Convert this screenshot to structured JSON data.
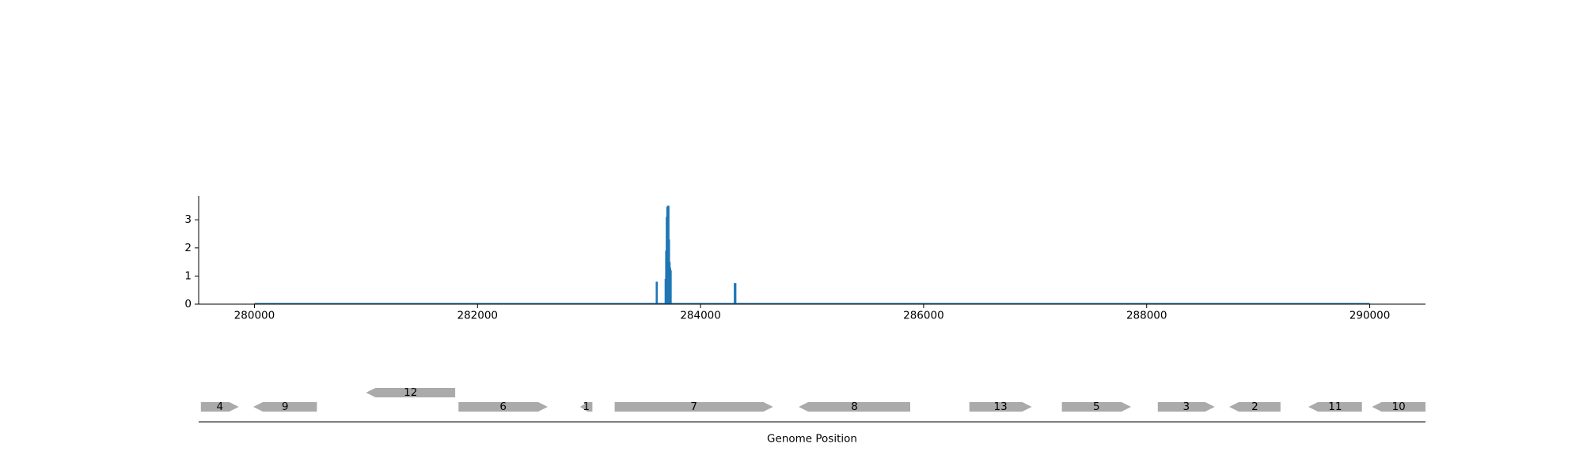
{
  "chart_data": [
    {
      "type": "bar",
      "title": "",
      "xlabel": "",
      "ylabel": "",
      "xlim": [
        279500,
        290500
      ],
      "ylim": [
        0,
        3.85
      ],
      "xticks": [
        280000,
        282000,
        284000,
        286000,
        288000,
        290000
      ],
      "xtick_labels": [
        "280000",
        "282000",
        "284000",
        "286000",
        "288000",
        "290000"
      ],
      "yticks": [
        0,
        1,
        2,
        3
      ],
      "ytick_labels": [
        "0",
        "1",
        "2",
        "3"
      ],
      "baseline_range": [
        280000,
        290000
      ],
      "color": "#1f77b4",
      "grid": false,
      "legend": false,
      "series": [
        {
          "x": [
            283605,
            283685,
            283690,
            283695,
            283700,
            283705,
            283710,
            283715,
            283720,
            283725,
            283730,
            284305,
            284310
          ],
          "values": [
            0.8,
            0.9,
            1.9,
            3.1,
            3.45,
            3.5,
            3.5,
            2.3,
            1.5,
            1.3,
            1.2,
            0.75,
            0.75
          ]
        }
      ]
    },
    {
      "type": "gene-track",
      "xlabel": "Genome Position",
      "xlim": [
        279500,
        290500
      ],
      "color": "#aaaaaa",
      "genes": [
        {
          "label": "4",
          "start": 279520,
          "end": 279860,
          "strand": "+",
          "row": 0
        },
        {
          "label": "9",
          "start": 279990,
          "end": 280560,
          "strand": "-",
          "row": 0
        },
        {
          "label": "12",
          "start": 281000,
          "end": 281800,
          "strand": "-",
          "row": 1
        },
        {
          "label": "6",
          "start": 281830,
          "end": 282630,
          "strand": "+",
          "row": 0
        },
        {
          "label": "1",
          "start": 282920,
          "end": 283030,
          "strand": "-",
          "row": 0
        },
        {
          "label": "7",
          "start": 283230,
          "end": 284650,
          "strand": "+",
          "row": 0
        },
        {
          "label": "8",
          "start": 284880,
          "end": 285880,
          "strand": "-",
          "row": 0
        },
        {
          "label": "13",
          "start": 286410,
          "end": 286970,
          "strand": "+",
          "row": 0
        },
        {
          "label": "5",
          "start": 287240,
          "end": 287860,
          "strand": "+",
          "row": 0
        },
        {
          "label": "3",
          "start": 288100,
          "end": 288610,
          "strand": "+",
          "row": 0
        },
        {
          "label": "2",
          "start": 288740,
          "end": 289200,
          "strand": "-",
          "row": 0
        },
        {
          "label": "11",
          "start": 289450,
          "end": 289930,
          "strand": "-",
          "row": 0
        },
        {
          "label": "10",
          "start": 290020,
          "end": 290500,
          "strand": "-",
          "row": 0
        }
      ]
    }
  ]
}
